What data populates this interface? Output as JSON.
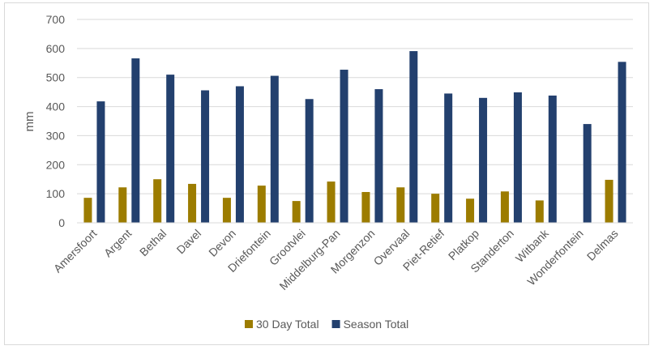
{
  "chart_data": {
    "type": "bar",
    "title": "",
    "xlabel": "",
    "ylabel": "mm",
    "ylim": [
      0,
      700
    ],
    "yticks": [
      0,
      100,
      200,
      300,
      400,
      500,
      600,
      700
    ],
    "grid": true,
    "legend_position": "bottom",
    "categories": [
      "Amersfoort",
      "Argent",
      "Bethal",
      "Davel",
      "Devon",
      "Driefontein",
      "Grootvlei",
      "Middelburg-Pan",
      "Morgenzon",
      "Overvaal",
      "Piet-Retief",
      "Platkop",
      "Standerton",
      "Witbank",
      "Wonderfontein",
      "Delmas"
    ],
    "series": [
      {
        "name": "30 Day Total",
        "color": "#9c7c00",
        "values": [
          86,
          122,
          150,
          134,
          86,
          128,
          75,
          142,
          106,
          122,
          100,
          83,
          108,
          77,
          null,
          148
        ]
      },
      {
        "name": "Season Total",
        "color": "#23406e",
        "values": [
          418,
          566,
          510,
          456,
          470,
          506,
          426,
          527,
          460,
          591,
          445,
          430,
          449,
          438,
          340,
          554
        ]
      }
    ]
  }
}
